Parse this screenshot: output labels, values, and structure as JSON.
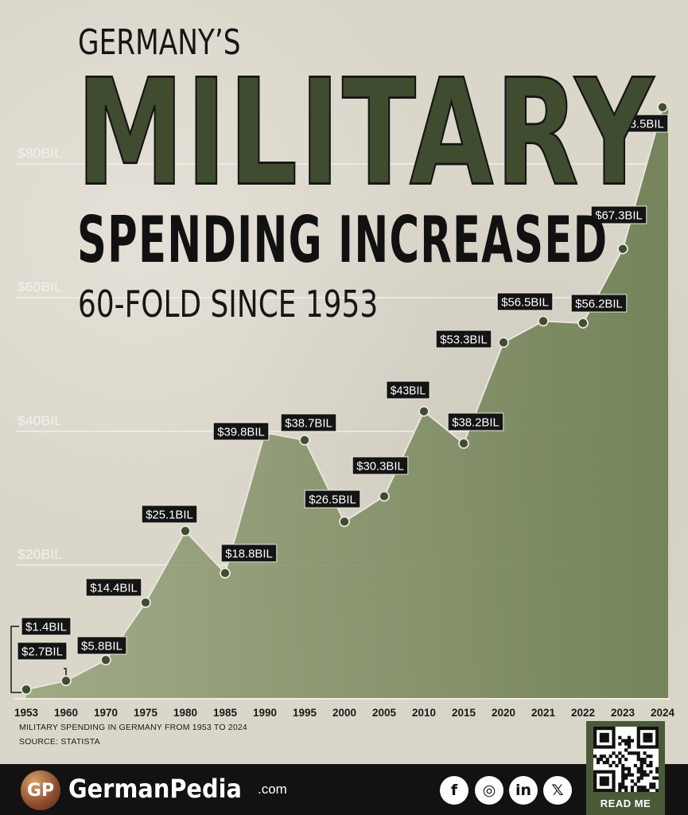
{
  "title": {
    "line1": "GERMANY’S",
    "line2": "MILITARY",
    "line3": "SPENDING INCREASED",
    "line4": "60-FOLD SINCE 1953"
  },
  "note": "MILITARY SPENDING IN GERMANY FROM 1953 TO 2024",
  "source": "SOURCE: STATISTA",
  "colors": {
    "line": "#3f4c30",
    "area": "#7f8f63",
    "grid": "#f2efe6",
    "label_bg": "#141414",
    "label_text": "#ffffff"
  },
  "footer": {
    "logo_text": "GP",
    "brand": "GermanPedia",
    "brand_suffix": ".com",
    "social": [
      {
        "icon": "facebook-icon",
        "glyph": "f"
      },
      {
        "icon": "instagram-icon",
        "glyph": "◎"
      },
      {
        "icon": "linkedin-icon",
        "glyph": "in"
      },
      {
        "icon": "x-icon",
        "glyph": "𝕏"
      }
    ],
    "qr_label": "READ ME"
  },
  "chart_data": {
    "type": "area",
    "title": "",
    "xlabel": "",
    "ylabel": "",
    "unit": "billion USD",
    "ylim": [
      0,
      90
    ],
    "yticks": [
      {
        "value": 20,
        "label": "$20BIL"
      },
      {
        "value": 40,
        "label": "$40BIL"
      },
      {
        "value": 60,
        "label": "$60BIL"
      },
      {
        "value": 80,
        "label": "$80BIL"
      }
    ],
    "grid": true,
    "legend": "none",
    "x": [
      "1953",
      "1960",
      "1970",
      "1975",
      "1980",
      "1985",
      "1990",
      "1995",
      "2000",
      "2005",
      "2010",
      "2015",
      "2020",
      "2021",
      "2022",
      "2023",
      "2024"
    ],
    "values": [
      1.4,
      2.7,
      5.8,
      14.4,
      25.1,
      18.8,
      39.8,
      38.7,
      26.5,
      30.3,
      43,
      38.2,
      53.3,
      56.5,
      56.2,
      67.3,
      88.5
    ],
    "labels": [
      "$1.4BIL",
      "$2.7BIL",
      "$5.8BIL",
      "$14.4BIL",
      "$25.1BIL",
      "$18.8BIL",
      "$39.8BIL",
      "$38.7BIL",
      "$26.5BIL",
      "$30.3BIL",
      "$43BIL",
      "$38.2BIL",
      "$53.3BIL",
      "$56.5BIL",
      "$56.2BIL",
      "$67.3BIL",
      "$88.5BIL"
    ]
  }
}
